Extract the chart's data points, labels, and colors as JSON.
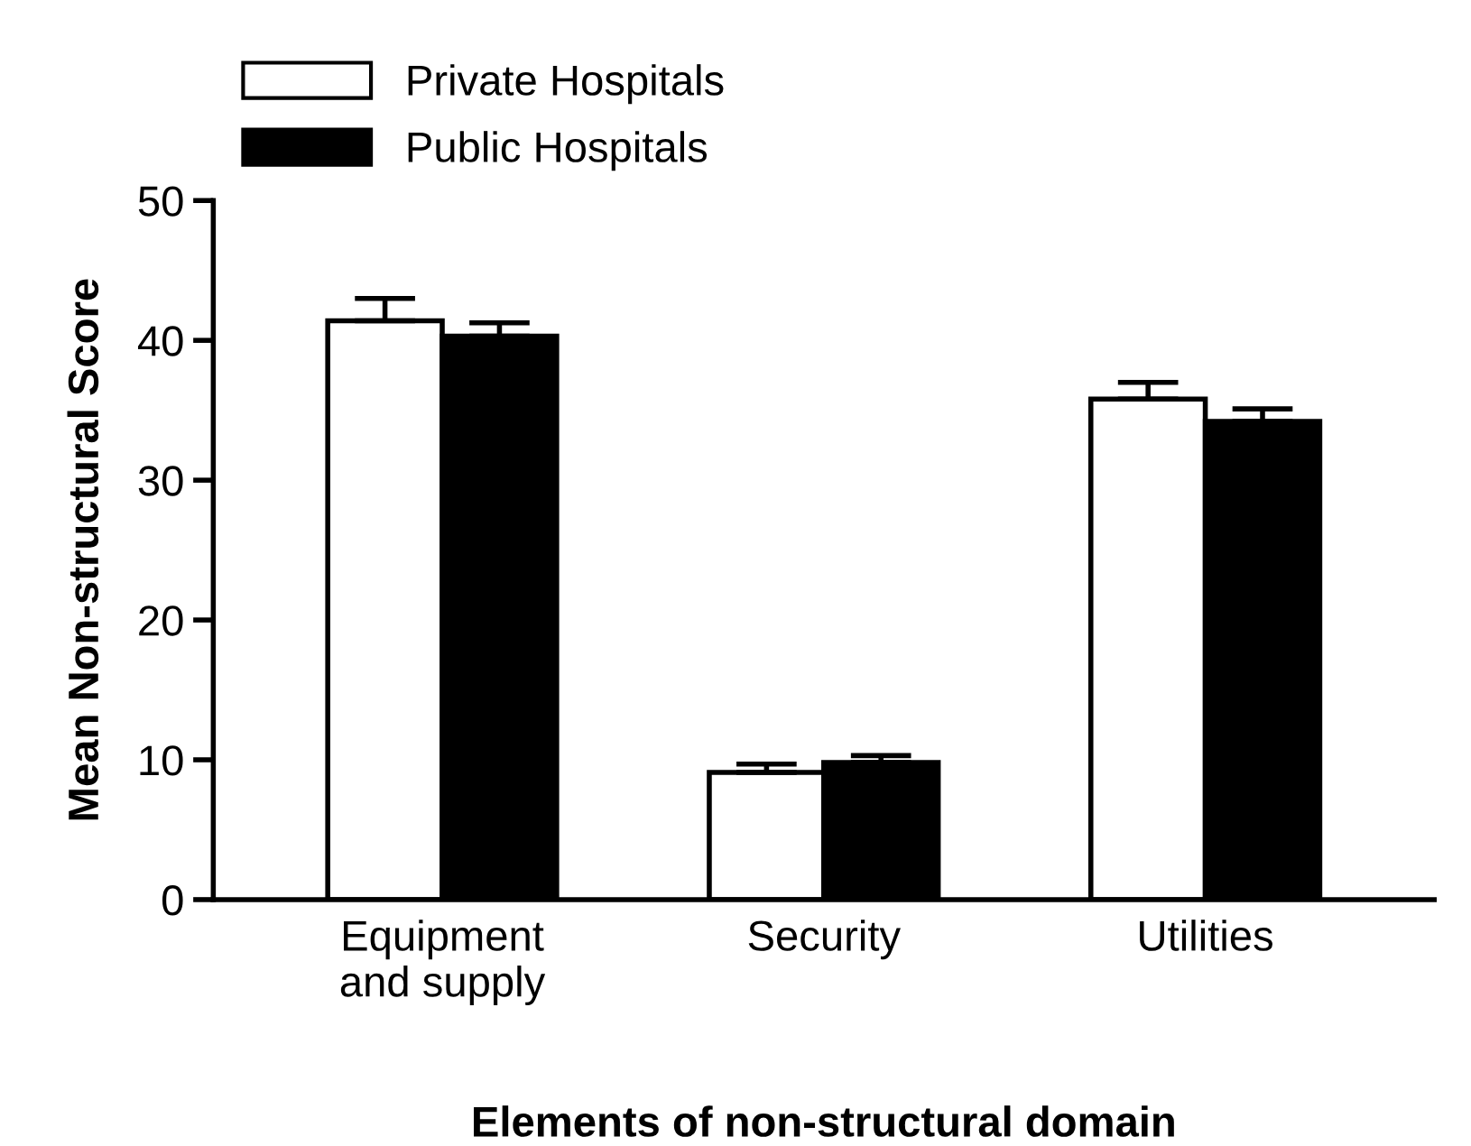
{
  "chart_data": {
    "type": "bar",
    "xlabel": "Elements of non-structural domain",
    "ylabel": "Mean Non-structural Score",
    "categories": [
      "Equipment\nand supply",
      "Security",
      "Utilities"
    ],
    "series": [
      {
        "name": "Private Hospitals",
        "color": "#ffffff",
        "values": [
          41.4,
          9.1,
          35.8
        ],
        "errors": [
          [
            41.4,
            43.0
          ],
          [
            9.1,
            9.7
          ],
          [
            35.8,
            37.0
          ]
        ]
      },
      {
        "name": "Public Hospitals",
        "color": "#000000",
        "values": [
          40.3,
          9.8,
          34.2
        ],
        "errors": [
          [
            40.3,
            41.25
          ],
          [
            9.8,
            10.3
          ],
          [
            34.2,
            35.1
          ]
        ]
      }
    ],
    "ylim": [
      0,
      50
    ],
    "yticks": [
      0,
      10,
      20,
      30,
      40,
      50
    ],
    "grid": false,
    "legend": "top left"
  }
}
